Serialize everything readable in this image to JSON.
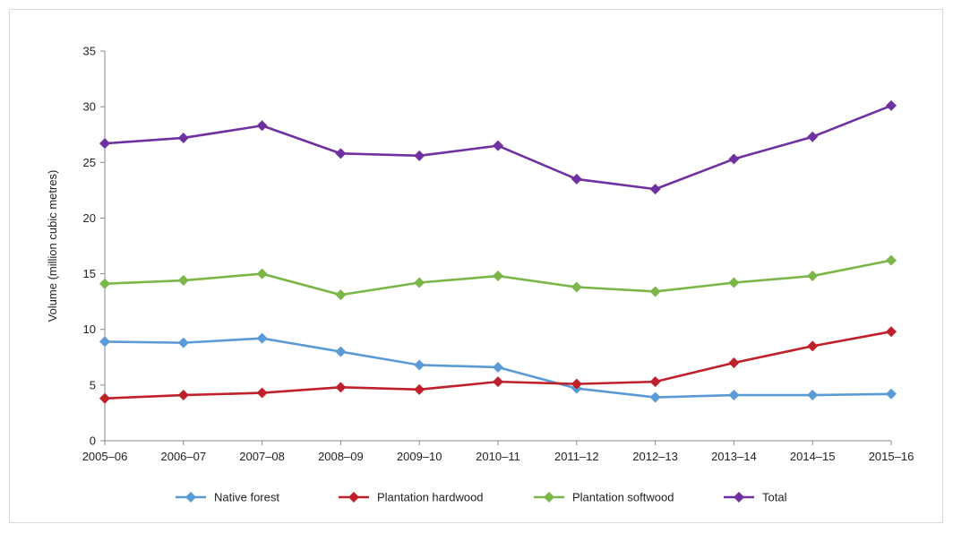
{
  "chart_data": {
    "type": "line",
    "title": "",
    "xlabel": "",
    "ylabel": "Volume (million cubic metres)",
    "ylim": [
      0,
      35
    ],
    "yticks": [
      0,
      5,
      10,
      15,
      20,
      25,
      30,
      35
    ],
    "grid": false,
    "legend_position": "bottom",
    "categories": [
      "2005–06",
      "2006–07",
      "2007–08",
      "2008–09",
      "2009–10",
      "2010–11",
      "2011–12",
      "2012–13",
      "2013–14",
      "2014–15",
      "2015–16"
    ],
    "series": [
      {
        "name": "Native forest",
        "color": "#5b9bd5",
        "marker": "diamond",
        "values": [
          8.9,
          8.8,
          9.2,
          8.0,
          6.8,
          6.6,
          4.7,
          3.9,
          4.1,
          4.1,
          4.2
        ]
      },
      {
        "name": "Plantation hardwood",
        "color": "#c0202a",
        "marker": "diamond",
        "values": [
          3.8,
          4.1,
          4.3,
          4.8,
          4.6,
          5.3,
          5.1,
          5.3,
          7.0,
          8.5,
          9.8
        ]
      },
      {
        "name": "Plantation softwood",
        "color": "#7ab648",
        "marker": "diamond",
        "values": [
          14.1,
          14.4,
          15.0,
          13.1,
          14.2,
          14.8,
          13.8,
          13.4,
          14.2,
          14.8,
          16.2
        ]
      },
      {
        "name": "Total",
        "color": "#7030a0",
        "marker": "diamond",
        "values": [
          26.7,
          27.2,
          28.3,
          25.8,
          25.6,
          26.5,
          23.5,
          22.6,
          25.3,
          27.3,
          30.1
        ]
      }
    ]
  }
}
